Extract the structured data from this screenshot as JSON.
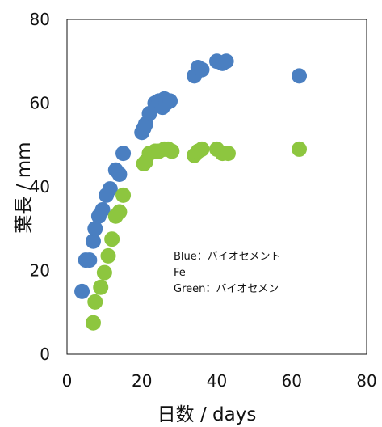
{
  "chart_data": {
    "type": "scatter",
    "xlabel": "日数 / days",
    "ylabel": "葉長 / mm",
    "xlim": [
      0,
      80
    ],
    "ylim": [
      0,
      80
    ],
    "x_ticks": [
      0,
      20,
      40,
      60,
      80
    ],
    "y_ticks": [
      0,
      20,
      40,
      60,
      80
    ],
    "grid": false,
    "annotation_lines": [
      "Blue：バイオセメント",
      "Fe",
      "Green：バイオセメン"
    ],
    "series": [
      {
        "color": "#4a7fc1",
        "points": [
          [
            4,
            15
          ],
          [
            5,
            22.5
          ],
          [
            6,
            22.5
          ],
          [
            7,
            27
          ],
          [
            7.5,
            30
          ],
          [
            8.5,
            33
          ],
          [
            9.5,
            34.5
          ],
          [
            10.5,
            38
          ],
          [
            11.5,
            39.5
          ],
          [
            13,
            44
          ],
          [
            14,
            43
          ],
          [
            15,
            48
          ],
          [
            20,
            53
          ],
          [
            20.5,
            54
          ],
          [
            21,
            55
          ],
          [
            22,
            57.5
          ],
          [
            23.5,
            60
          ],
          [
            24.5,
            60.5
          ],
          [
            25,
            60
          ],
          [
            25.5,
            59
          ],
          [
            26,
            61
          ],
          [
            26.5,
            60
          ],
          [
            27.5,
            60.5
          ],
          [
            34,
            66.5
          ],
          [
            35,
            68.5
          ],
          [
            36,
            68
          ],
          [
            40,
            70
          ],
          [
            41.5,
            69.5
          ],
          [
            42.5,
            70
          ],
          [
            62,
            66.5
          ]
        ]
      },
      {
        "color": "#8dc63f",
        "points": [
          [
            7,
            7.5
          ],
          [
            7.5,
            12.5
          ],
          [
            9,
            16
          ],
          [
            10,
            19.5
          ],
          [
            11,
            23.5
          ],
          [
            12,
            27.5
          ],
          [
            13,
            33
          ],
          [
            14,
            34
          ],
          [
            15,
            38
          ],
          [
            20.5,
            45.5
          ],
          [
            21,
            46
          ],
          [
            22,
            48
          ],
          [
            23.5,
            48.5
          ],
          [
            24.5,
            48.5
          ],
          [
            26,
            49
          ],
          [
            27,
            49
          ],
          [
            28,
            48.5
          ],
          [
            34,
            47.5
          ],
          [
            35,
            48.5
          ],
          [
            36,
            49
          ],
          [
            40,
            49
          ],
          [
            41.5,
            48
          ],
          [
            43,
            48
          ],
          [
            62,
            49
          ]
        ]
      }
    ]
  }
}
